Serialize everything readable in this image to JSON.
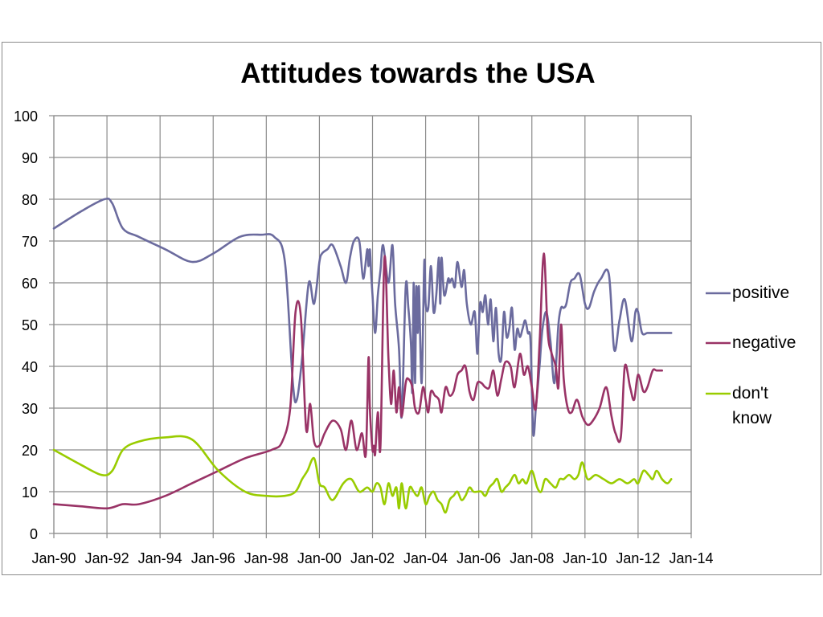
{
  "chart_data": {
    "type": "line",
    "title": "Attitudes towards the USA",
    "xlabel": "",
    "ylabel": "",
    "ylim": [
      0,
      100
    ],
    "yticks": [
      "0",
      "10",
      "20",
      "30",
      "40",
      "50",
      "60",
      "70",
      "80",
      "90",
      "100"
    ],
    "xticks": [
      "Jan-90",
      "Jan-92",
      "Jan-94",
      "Jan-96",
      "Jan-98",
      "Jan-00",
      "Jan-02",
      "Jan-04",
      "Jan-06",
      "Jan-08",
      "Jan-10",
      "Jan-12",
      "Jan-14"
    ],
    "xlim": [
      1990,
      2014
    ],
    "grid": true,
    "legend_position": "right",
    "series": [
      {
        "name": "positive",
        "color": "#6B6B9E",
        "x": [
          1990.0,
          1991.0,
          1991.9,
          1992.2,
          1992.6,
          1993.2,
          1994.2,
          1995.2,
          1996.0,
          1997.0,
          1997.8,
          1998.3,
          1998.7,
          1999.0,
          1999.15,
          1999.35,
          1999.6,
          1999.8,
          2000.0,
          2000.1,
          2000.3,
          2000.5,
          2000.8,
          2001.0,
          2001.15,
          2001.3,
          2001.5,
          2001.65,
          2001.8,
          2001.85,
          2001.9,
          2001.95,
          2002.0,
          2002.1,
          2002.2,
          2002.3,
          2002.4,
          2002.6,
          2002.75,
          2002.85,
          2003.0,
          2003.1,
          2003.25,
          2003.35,
          2003.45,
          2003.5,
          2003.55,
          2003.6,
          2003.65,
          2003.7,
          2003.75,
          2003.85,
          2003.95,
          2004.0,
          2004.1,
          2004.2,
          2004.3,
          2004.4,
          2004.5,
          2004.55,
          2004.6,
          2004.7,
          2004.85,
          2004.9,
          2005.0,
          2005.1,
          2005.2,
          2005.35,
          2005.45,
          2005.55,
          2005.7,
          2005.85,
          2005.95,
          2006.05,
          2006.15,
          2006.25,
          2006.35,
          2006.45,
          2006.55,
          2006.65,
          2006.75,
          2006.85,
          2006.95,
          2007.05,
          2007.15,
          2007.25,
          2007.35,
          2007.45,
          2007.55,
          2007.65,
          2007.75,
          2007.85,
          2007.95,
          2008.05,
          2008.15,
          2008.25,
          2008.3,
          2008.4,
          2008.55,
          2008.7,
          2008.85,
          2009.0,
          2009.1,
          2009.2,
          2009.3,
          2009.45,
          2009.6,
          2009.8,
          2010.0,
          2010.15,
          2010.35,
          2010.6,
          2010.9,
          2011.1,
          2011.3,
          2011.5,
          2011.75,
          2011.9,
          2012.0,
          2012.15,
          2012.35,
          2012.5,
          2012.65,
          2012.8,
          2012.95,
          2013.1,
          2013.25
        ],
        "values": [
          73,
          77,
          80,
          79,
          73,
          71,
          68,
          65,
          67,
          71,
          71.5,
          71,
          65,
          36,
          32,
          42,
          60,
          55,
          65,
          67,
          68,
          69,
          64,
          60,
          66,
          70,
          70,
          61,
          68,
          64,
          68,
          62,
          57,
          48,
          57,
          63,
          69,
          60,
          69,
          55,
          44,
          28,
          59,
          54,
          45,
          34,
          60,
          36,
          59,
          48,
          59,
          36,
          65,
          55,
          54,
          64,
          53,
          57,
          66,
          55,
          66,
          57,
          61,
          60,
          61,
          59,
          65,
          59,
          63,
          55,
          50,
          53,
          43,
          55,
          53,
          57,
          50,
          56,
          46,
          54,
          43,
          42,
          53,
          47,
          49,
          54,
          44,
          49,
          47,
          49,
          51,
          48,
          46,
          24,
          30,
          37,
          41,
          49,
          53,
          46,
          36,
          50,
          54,
          54,
          55,
          60,
          61,
          62,
          55,
          54,
          58,
          61,
          62,
          44,
          51,
          56,
          46,
          53,
          53,
          48,
          48,
          48,
          48,
          48,
          48,
          48,
          48
        ],
        "plot_until": 2013.25
      },
      {
        "name": "negative",
        "color": "#993366",
        "x": [
          1990.0,
          1991.0,
          1992.0,
          1992.6,
          1993.2,
          1994.2,
          1995.2,
          1996.2,
          1997.2,
          1998.2,
          1998.6,
          1998.9,
          1999.1,
          1999.3,
          1999.5,
          1999.65,
          1999.8,
          2000.0,
          2000.2,
          2000.5,
          2000.8,
          2001.0,
          2001.2,
          2001.4,
          2001.6,
          2001.75,
          2001.85,
          2001.9,
          2002.0,
          2002.05,
          2002.1,
          2002.2,
          2002.3,
          2002.45,
          2002.6,
          2002.7,
          2002.8,
          2002.9,
          2003.0,
          2003.1,
          2003.25,
          2003.35,
          2003.5,
          2003.6,
          2003.75,
          2003.9,
          2004.0,
          2004.1,
          2004.2,
          2004.35,
          2004.5,
          2004.6,
          2004.75,
          2004.9,
          2005.05,
          2005.2,
          2005.35,
          2005.5,
          2005.65,
          2005.8,
          2005.95,
          2006.1,
          2006.25,
          2006.4,
          2006.55,
          2006.7,
          2006.85,
          2007.0,
          2007.2,
          2007.35,
          2007.55,
          2007.7,
          2007.85,
          2008.0,
          2008.15,
          2008.3,
          2008.45,
          2008.6,
          2008.75,
          2008.9,
          2009.0,
          2009.1,
          2009.2,
          2009.35,
          2009.5,
          2009.7,
          2009.9,
          2010.1,
          2010.3,
          2010.55,
          2010.8,
          2011.0,
          2011.15,
          2011.35,
          2011.5,
          2011.7,
          2011.85,
          2012.0,
          2012.2,
          2012.35,
          2012.55,
          2012.7,
          2012.9,
          2013.1,
          2013.25
        ],
        "values": [
          7,
          6.5,
          6,
          7,
          7,
          9,
          12,
          15,
          18,
          20,
          22,
          30,
          53,
          52,
          25,
          31,
          22,
          21,
          24,
          27,
          25,
          20,
          27,
          20,
          24,
          19,
          42,
          30,
          20,
          21,
          19,
          29,
          21,
          66,
          42,
          31,
          39,
          29,
          35,
          28,
          36,
          37,
          35,
          30,
          29,
          35,
          32,
          29,
          34,
          33,
          32,
          29,
          35,
          33,
          34,
          38,
          39,
          40,
          34,
          32,
          36,
          36,
          35,
          35,
          39,
          33,
          37,
          41,
          40,
          35,
          43,
          38,
          40,
          35,
          30,
          47,
          67,
          48,
          43,
          40,
          35,
          50,
          37,
          30,
          29,
          32,
          28,
          26,
          27,
          30,
          35,
          28,
          24,
          23,
          40,
          35,
          32,
          38,
          34,
          35,
          39,
          39,
          39,
          39,
          39
        ],
        "plot_until": 2012.9
      },
      {
        "name": "don't know",
        "color": "#99CC00",
        "x": [
          1990.0,
          1991.0,
          1991.8,
          1992.2,
          1992.6,
          1993.2,
          1994.2,
          1995.2,
          1996.2,
          1997.2,
          1998.0,
          1998.7,
          1999.1,
          1999.35,
          1999.55,
          1999.8,
          2000.0,
          2000.2,
          2000.5,
          2000.9,
          2001.2,
          2001.5,
          2001.8,
          2002.0,
          2002.15,
          2002.3,
          2002.45,
          2002.6,
          2002.75,
          2002.9,
          2003.0,
          2003.1,
          2003.25,
          2003.4,
          2003.55,
          2003.7,
          2003.85,
          2004.0,
          2004.15,
          2004.3,
          2004.45,
          2004.6,
          2004.75,
          2004.9,
          2005.05,
          2005.2,
          2005.35,
          2005.5,
          2005.65,
          2005.8,
          2005.95,
          2006.1,
          2006.25,
          2006.4,
          2006.55,
          2006.7,
          2006.85,
          2007.0,
          2007.15,
          2007.35,
          2007.5,
          2007.65,
          2007.8,
          2008.0,
          2008.2,
          2008.35,
          2008.5,
          2008.7,
          2008.9,
          2009.05,
          2009.2,
          2009.4,
          2009.6,
          2009.75,
          2009.9,
          2010.1,
          2010.4,
          2010.7,
          2011.0,
          2011.3,
          2011.6,
          2011.85,
          2012.0,
          2012.2,
          2012.4,
          2012.55,
          2012.7,
          2012.9,
          2013.1,
          2013.25
        ],
        "values": [
          20,
          16.5,
          14,
          15,
          20,
          22,
          23,
          22.5,
          15,
          10,
          9,
          9,
          10,
          13,
          15,
          18,
          12,
          11,
          8,
          12,
          13,
          10,
          11,
          10,
          12,
          11,
          7,
          12,
          9,
          11,
          6,
          12,
          6,
          11,
          10,
          9,
          11,
          7,
          9,
          10,
          8,
          7,
          5,
          8,
          9,
          10,
          8,
          9,
          11,
          10,
          10,
          10,
          9,
          11,
          12,
          13,
          10,
          11,
          12,
          14,
          12,
          13,
          12,
          15,
          11,
          10,
          13,
          12,
          11,
          13,
          13,
          14,
          13,
          14,
          17,
          13,
          14,
          13,
          12,
          13,
          12,
          13,
          12,
          15,
          14,
          13,
          15,
          13,
          12,
          13
        ],
        "plot_until": 2013.25
      }
    ]
  }
}
